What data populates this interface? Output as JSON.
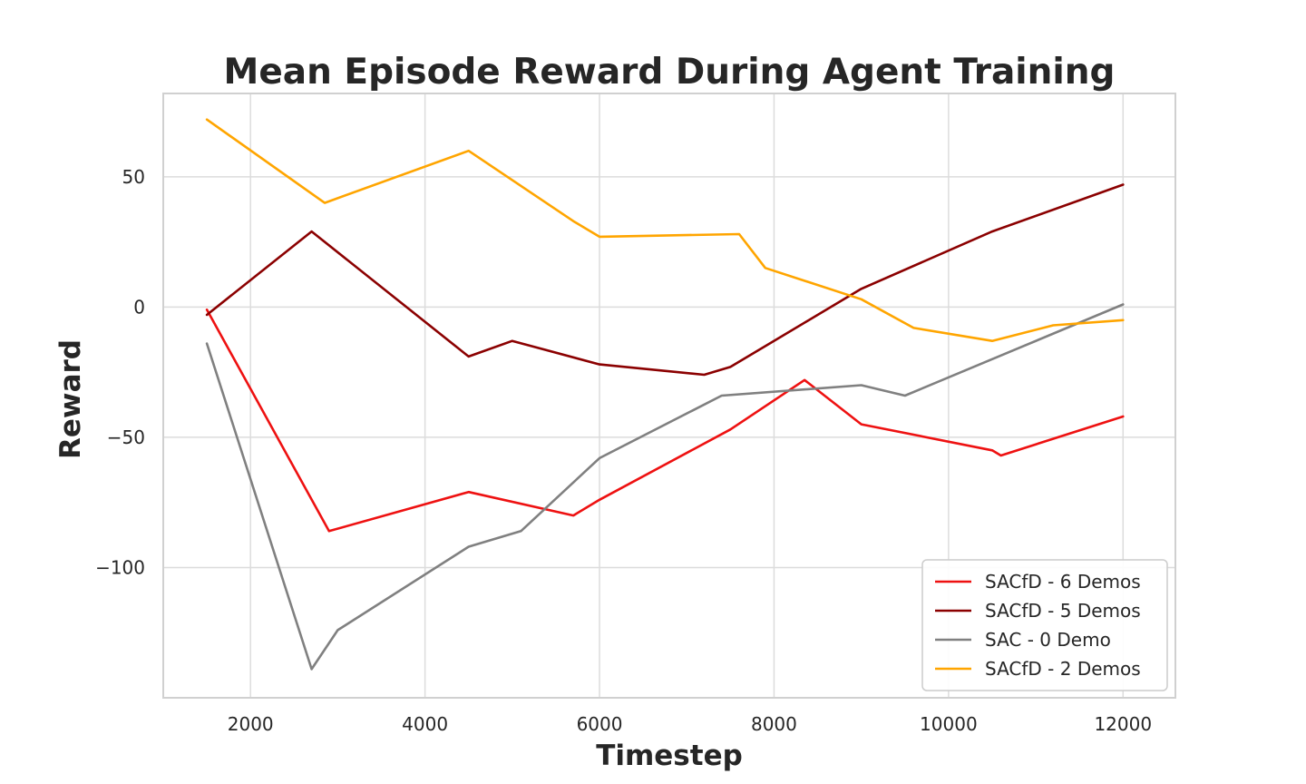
{
  "chart_data": {
    "type": "line",
    "title": "Mean Episode Reward During Agent Training",
    "xlabel": "Timestep",
    "ylabel": "Reward",
    "xlim": [
      1000,
      12600
    ],
    "ylim": [
      -150,
      82
    ],
    "xticks": [
      2000,
      4000,
      6000,
      8000,
      10000,
      12000
    ],
    "yticks": [
      -100,
      -50,
      0,
      50
    ],
    "ytick_labels": [
      "−100",
      "−50",
      "0",
      "50"
    ],
    "grid": true,
    "legend_position": "lower-right",
    "series": [
      {
        "name": "SACfD - 6 Demos",
        "color": "#ee1111",
        "points": [
          [
            1500,
            -1
          ],
          [
            2900,
            -86
          ],
          [
            4500,
            -71
          ],
          [
            5700,
            -80
          ],
          [
            6000,
            -74
          ],
          [
            7500,
            -47
          ],
          [
            8350,
            -28
          ],
          [
            9000,
            -45
          ],
          [
            10500,
            -55
          ],
          [
            10600,
            -57
          ],
          [
            12000,
            -42
          ]
        ]
      },
      {
        "name": "SACfD - 5 Demos",
        "color": "#8b0000",
        "points": [
          [
            1500,
            -3
          ],
          [
            2700,
            29
          ],
          [
            4500,
            -19
          ],
          [
            5000,
            -13
          ],
          [
            6000,
            -22
          ],
          [
            7200,
            -26
          ],
          [
            7500,
            -23
          ],
          [
            9000,
            7
          ],
          [
            10500,
            29
          ],
          [
            12000,
            47
          ]
        ]
      },
      {
        "name": "SAC - 0 Demo",
        "color": "#808080",
        "points": [
          [
            1500,
            -14
          ],
          [
            2700,
            -139
          ],
          [
            3000,
            -124
          ],
          [
            4500,
            -92
          ],
          [
            5100,
            -86
          ],
          [
            6000,
            -58
          ],
          [
            7400,
            -34
          ],
          [
            9000,
            -30
          ],
          [
            9500,
            -34
          ],
          [
            12000,
            1
          ]
        ]
      },
      {
        "name": "SACfD - 2 Demos",
        "color": "#ffa500",
        "points": [
          [
            1500,
            72
          ],
          [
            2850,
            40
          ],
          [
            4500,
            60
          ],
          [
            5700,
            33
          ],
          [
            6000,
            27
          ],
          [
            7600,
            28
          ],
          [
            7900,
            15
          ],
          [
            9000,
            3
          ],
          [
            9600,
            -8
          ],
          [
            10500,
            -13
          ],
          [
            11200,
            -7
          ],
          [
            12000,
            -5
          ]
        ]
      }
    ]
  }
}
